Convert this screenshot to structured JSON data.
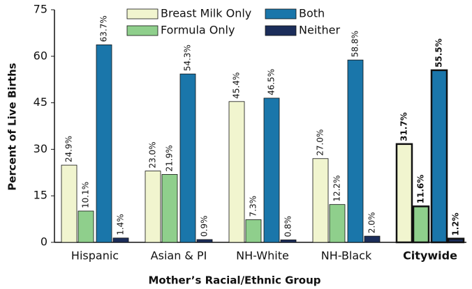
{
  "chart_data": {
    "type": "bar",
    "x_label": "Mother’s Racial/Ethnic Group",
    "y_label": "Percent of Live Births",
    "categories": [
      "Hispanic",
      "Asian & PI",
      "NH-White",
      "NH-Black",
      "Citywide"
    ],
    "series": [
      {
        "name": "Breast Milk Only",
        "color": "#f1f5cf",
        "values": [
          24.9,
          23.0,
          45.4,
          27.0,
          31.7
        ],
        "value_labels": [
          "24.9%",
          "23.0%",
          "45.4%",
          "27.0%",
          "31.7%"
        ]
      },
      {
        "name": "Formula Only",
        "color": "#8fcf8c",
        "values": [
          10.1,
          21.9,
          7.3,
          12.2,
          11.6
        ],
        "value_labels": [
          "10.1%",
          "21.9%",
          "7.3%",
          "12.2%",
          "11.6%"
        ]
      },
      {
        "name": "Both",
        "color": "#1a76aa",
        "values": [
          63.7,
          54.3,
          46.5,
          58.8,
          55.5
        ],
        "value_labels": [
          "63.7%",
          "54.3%",
          "46.5%",
          "58.8%",
          "55.5%"
        ]
      },
      {
        "name": "Neither",
        "color": "#1b2d5a",
        "values": [
          1.4,
          0.9,
          0.8,
          2.0,
          1.2
        ],
        "value_labels": [
          "1.4%",
          "0.9%",
          "0.8%",
          "2.0%",
          "1.2%"
        ]
      }
    ],
    "ylim": [
      0,
      75
    ],
    "yticks": [
      0,
      15,
      30,
      45,
      60,
      75
    ]
  }
}
